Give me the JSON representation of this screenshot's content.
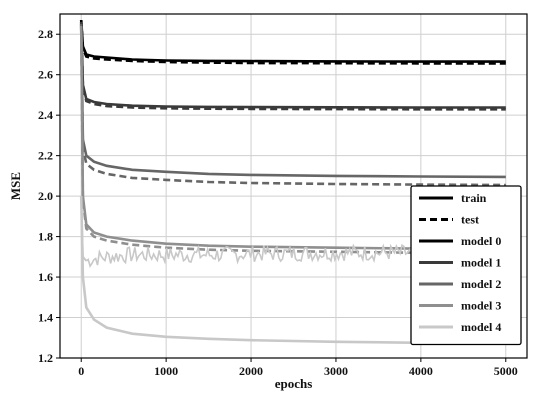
{
  "chart_data": {
    "type": "line",
    "xlabel": "epochs",
    "ylabel": "MSE",
    "xlim": [
      -250,
      5250
    ],
    "ylim": [
      1.2,
      2.9
    ],
    "xticks": [
      0,
      1000,
      2000,
      3000,
      4000,
      5000
    ],
    "yticks": [
      1.2,
      1.4,
      1.6,
      1.8,
      2.0,
      2.2,
      2.4,
      2.6,
      2.8
    ],
    "xtick_labels": [
      "0",
      "1000",
      "2000",
      "3000",
      "4000",
      "5000"
    ],
    "ytick_labels": [
      "1.2",
      "1.4",
      "1.6",
      "1.8",
      "2.0",
      "2.2",
      "2.4",
      "2.6",
      "2.8"
    ],
    "grid": true,
    "legend_position": "lower right",
    "legend_line_styles": [
      {
        "label": "train",
        "style": "solid",
        "color": "#000000"
      },
      {
        "label": "test",
        "style": "dashed",
        "color": "#000000"
      }
    ],
    "series": [
      {
        "name": "model 0",
        "color": "#000000",
        "train": {
          "x": [
            0,
            20,
            60,
            150,
            300,
            600,
            1000,
            1500,
            2000,
            3000,
            4000,
            5000
          ],
          "y": [
            2.87,
            2.74,
            2.7,
            2.69,
            2.685,
            2.675,
            2.67,
            2.668,
            2.667,
            2.666,
            2.665,
            2.665
          ]
        },
        "test": {
          "x": [
            0,
            20,
            60,
            150,
            300,
            600,
            1000,
            1500,
            2000,
            3000,
            4000,
            5000
          ],
          "y": [
            2.87,
            2.73,
            2.69,
            2.68,
            2.675,
            2.668,
            2.663,
            2.66,
            2.658,
            2.657,
            2.656,
            2.656
          ]
        }
      },
      {
        "name": "model 1",
        "color": "#3a3a3a",
        "train": {
          "x": [
            0,
            20,
            60,
            150,
            300,
            600,
            1000,
            1500,
            2000,
            3000,
            4000,
            5000
          ],
          "y": [
            2.86,
            2.55,
            2.48,
            2.465,
            2.455,
            2.447,
            2.443,
            2.441,
            2.44,
            2.439,
            2.438,
            2.438
          ]
        },
        "test": {
          "x": [
            0,
            20,
            60,
            150,
            300,
            600,
            1000,
            1500,
            2000,
            3000,
            4000,
            5000
          ],
          "y": [
            2.86,
            2.54,
            2.47,
            2.455,
            2.445,
            2.438,
            2.434,
            2.432,
            2.431,
            2.43,
            2.429,
            2.429
          ]
        }
      },
      {
        "name": "model 2",
        "color": "#666666",
        "train": {
          "x": [
            0,
            20,
            60,
            150,
            300,
            600,
            1000,
            1500,
            2000,
            3000,
            4000,
            5000
          ],
          "y": [
            2.85,
            2.28,
            2.2,
            2.17,
            2.15,
            2.13,
            2.12,
            2.11,
            2.105,
            2.1,
            2.097,
            2.095
          ]
        },
        "test": {
          "x": [
            0,
            20,
            60,
            150,
            300,
            600,
            1000,
            1500,
            2000,
            3000,
            4000,
            5000
          ],
          "y": [
            2.85,
            2.24,
            2.16,
            2.13,
            2.11,
            2.09,
            2.08,
            2.07,
            2.065,
            2.06,
            2.057,
            2.055
          ]
        }
      },
      {
        "name": "model 3",
        "color": "#8f8f8f",
        "train": {
          "x": [
            0,
            20,
            60,
            150,
            300,
            600,
            1000,
            1500,
            2000,
            3000,
            4000,
            5000
          ],
          "y": [
            2.84,
            2.0,
            1.86,
            1.82,
            1.8,
            1.78,
            1.765,
            1.755,
            1.75,
            1.745,
            1.74,
            1.74
          ]
        },
        "test": {
          "x": [
            0,
            20,
            60,
            150,
            300,
            600,
            1000,
            1500,
            2000,
            3000,
            4000,
            5000
          ],
          "y": [
            2.84,
            1.98,
            1.84,
            1.8,
            1.78,
            1.76,
            1.745,
            1.735,
            1.73,
            1.725,
            1.72,
            1.72
          ]
        }
      },
      {
        "name": "model 4",
        "color": "#c8c8c8",
        "train": {
          "x": [
            0,
            20,
            60,
            150,
            300,
            600,
            1000,
            1500,
            2000,
            3000,
            4000,
            5000
          ],
          "y": [
            2.0,
            1.6,
            1.45,
            1.39,
            1.35,
            1.32,
            1.305,
            1.295,
            1.288,
            1.28,
            1.275,
            1.272
          ]
        },
        "test": {
          "x": [
            0,
            20,
            60,
            150,
            300,
            600,
            1000,
            1500,
            2000,
            3000,
            4000,
            5000
          ],
          "y": [
            2.0,
            1.7,
            1.68,
            1.69,
            1.7,
            1.71,
            1.71,
            1.71,
            1.715,
            1.72,
            1.72,
            1.72
          ]
        },
        "test_noise_amplitude": 0.04
      }
    ]
  }
}
